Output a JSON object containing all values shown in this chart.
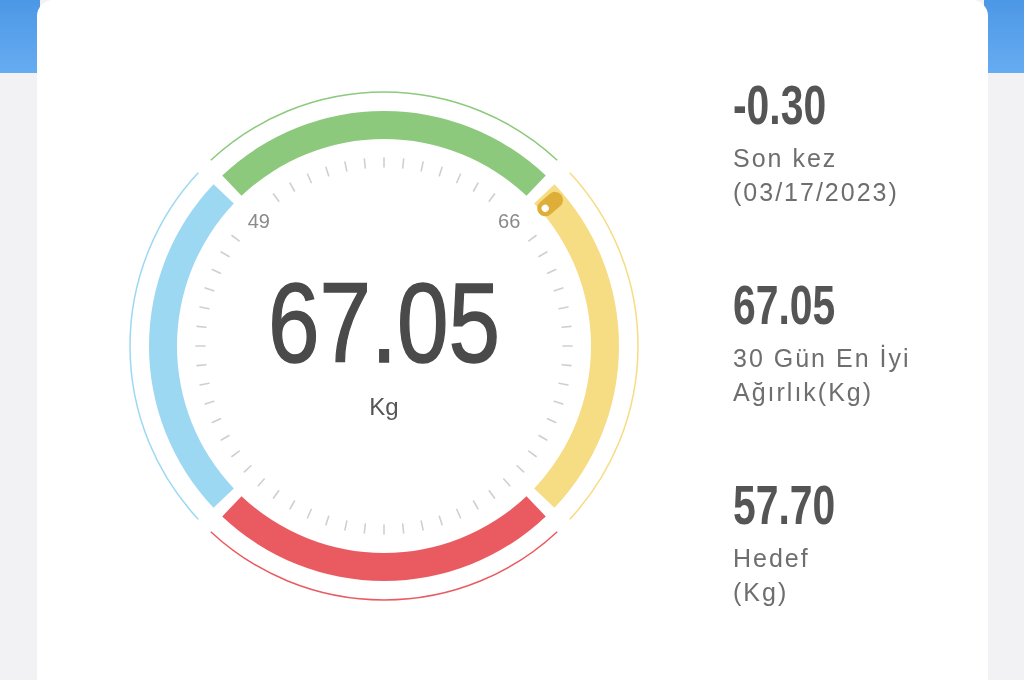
{
  "chart_data": [
    {
      "type": "donut",
      "title": "67.05",
      "subtitle": "Kg",
      "categories": [
        null,
        null,
        null,
        null
      ],
      "values": [
        25,
        25,
        25,
        25
      ],
      "colors": [
        "#9dd8f3",
        "#8dc97c",
        "#f6dc82",
        "#e95b60"
      ],
      "annotations": [
        "49",
        "66"
      ]
    },
    {
      "type": "other",
      "annotations": [
        "-0.30",
        "Son kez\n(03/17/2023)",
        "67.05",
        "30 Gün En İyi\nAğırlık(Kg)",
        "57.70",
        "Hedef\n(Kg)"
      ]
    }
  ]
}
